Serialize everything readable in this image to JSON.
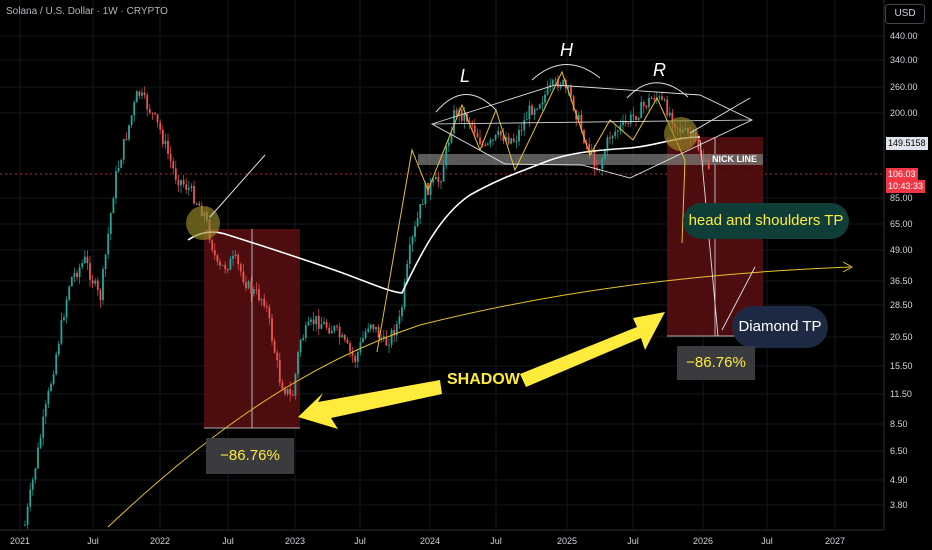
{
  "header": {
    "title": "Solana / U.S. Dollar · 1W · CRYPTO"
  },
  "currency_button": "USD",
  "price_axis": {
    "labels": [
      "440.00",
      "340.00",
      "260.00",
      "200.00",
      "149.5158",
      "106.03",
      "10:43:33",
      "85.00",
      "65.00",
      "49.00",
      "36.50",
      "28.50",
      "20.50",
      "15.50",
      "11.50",
      "8.50",
      "6.50",
      "4.90",
      "3.80"
    ],
    "current_price": "106.03",
    "countdown": "10:43:33",
    "marked_level": "149.5158",
    "current_color": "#f23645"
  },
  "time_axis": {
    "labels": [
      "2021",
      "Jul",
      "2022",
      "Jul",
      "2023",
      "Jul",
      "2024",
      "Jul",
      "2025",
      "Jul",
      "2026",
      "Jul",
      "2027"
    ]
  },
  "annotations": {
    "L": "L",
    "H": "H",
    "R": "R",
    "nick_line": "NICK LINE",
    "hs_tp": "head and shoulders TP",
    "diamond_tp": "Diamond TP",
    "pct_left": "−86.76%",
    "pct_right": "−86.76%",
    "shadow": "SHADOW"
  },
  "colors": {
    "up": "#26a69a",
    "down": "#ef5350",
    "accent_yellow": "#ffeb3b",
    "label_bg_green": "#0f3d38",
    "label_bg_blue": "#1e2a44"
  }
}
